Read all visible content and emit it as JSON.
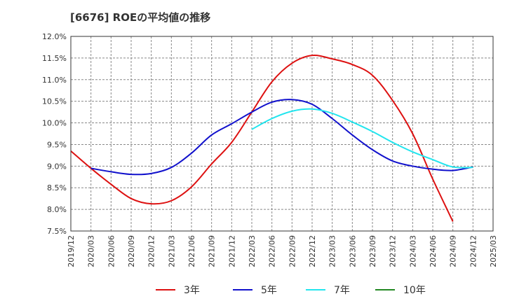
{
  "title": "[6676]  ROEの平均値の推移",
  "chart_data": {
    "type": "line",
    "title": "[6676]  ROEの平均値の推移",
    "xlabel": "",
    "ylabel": "",
    "x": [
      "2019/12",
      "2020/03",
      "2020/06",
      "2020/09",
      "2020/12",
      "2021/03",
      "2021/06",
      "2021/09",
      "2021/12",
      "2022/03",
      "2022/06",
      "2022/09",
      "2022/12",
      "2023/03",
      "2023/06",
      "2023/09",
      "2023/12",
      "2024/03",
      "2024/06",
      "2024/09",
      "2024/12",
      "2025/03"
    ],
    "ylim": [
      7.5,
      12.0
    ],
    "yticks": [
      "12.0%",
      "11.5%",
      "11.0%",
      "10.5%",
      "10.0%",
      "9.5%",
      "9.0%",
      "8.5%",
      "8.0%",
      "7.5%"
    ],
    "grid": true,
    "legend_position": "bottom",
    "series": [
      {
        "name": "3年",
        "color": "#dd1111",
        "values": [
          9.35,
          8.95,
          8.58,
          8.25,
          8.13,
          8.2,
          8.52,
          9.05,
          9.55,
          10.25,
          10.95,
          11.38,
          11.56,
          11.48,
          11.35,
          11.1,
          10.52,
          9.75,
          8.7,
          7.72,
          null,
          null
        ]
      },
      {
        "name": "5年",
        "color": "#1111cc",
        "values": [
          null,
          8.95,
          8.87,
          8.81,
          8.83,
          8.97,
          9.3,
          9.72,
          9.98,
          10.25,
          10.48,
          10.54,
          10.43,
          10.1,
          9.72,
          9.38,
          9.12,
          9.0,
          8.93,
          8.9,
          8.98,
          null
        ]
      },
      {
        "name": "7年",
        "color": "#22e5ee",
        "values": [
          null,
          null,
          null,
          null,
          null,
          null,
          null,
          null,
          null,
          9.85,
          10.1,
          10.27,
          10.32,
          10.22,
          10.02,
          9.8,
          9.55,
          9.33,
          9.15,
          8.98,
          8.97,
          null
        ]
      },
      {
        "name": "10年",
        "color": "#228822",
        "values": [
          null,
          null,
          null,
          null,
          null,
          null,
          null,
          null,
          null,
          null,
          null,
          null,
          null,
          null,
          null,
          null,
          null,
          null,
          null,
          null,
          null,
          null
        ]
      }
    ]
  }
}
